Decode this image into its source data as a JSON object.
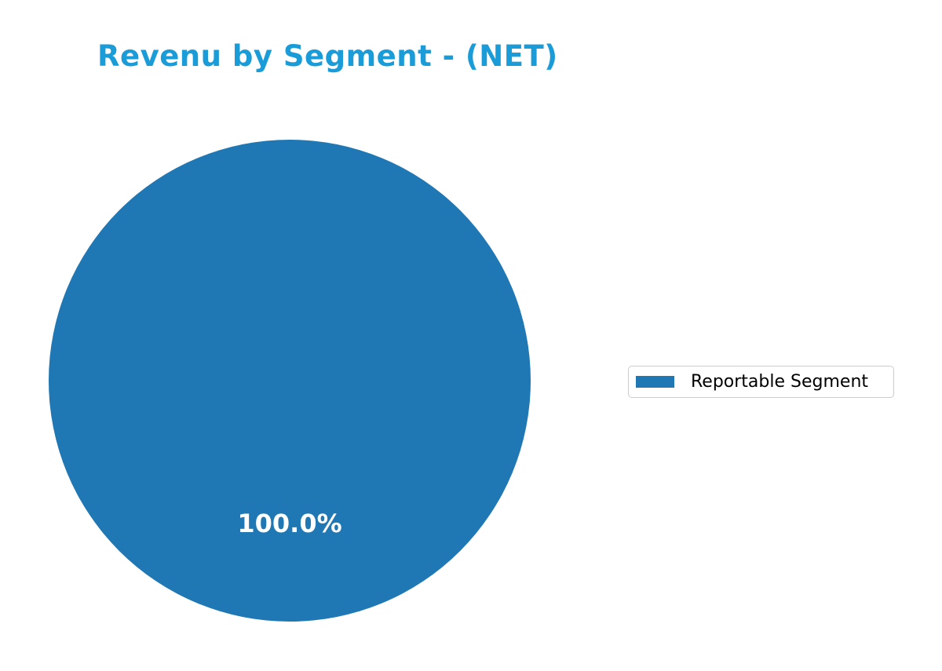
{
  "title": {
    "text": "Revenu by Segment - (NET)",
    "color": "#1a9cd8"
  },
  "pie": {
    "slice_label": "100.0%",
    "color": "#1f77b4",
    "label_color": "#ffffff"
  },
  "legend": {
    "entries": [
      {
        "label": "Reportable Segment",
        "swatch_color": "#1f77b4"
      }
    ],
    "border_color": "#cccccc",
    "position": "center-right"
  },
  "chart_data": {
    "type": "pie",
    "title": "Revenu by Segment - (NET)",
    "categories": [
      "Reportable Segment"
    ],
    "values": [
      100.0
    ],
    "value_labels": [
      "100.0%"
    ],
    "colors": [
      "#1f77b4"
    ],
    "startangle": 90,
    "legend": {
      "position": "right",
      "entries": [
        "Reportable Segment"
      ]
    },
    "background": "#ffffff"
  }
}
